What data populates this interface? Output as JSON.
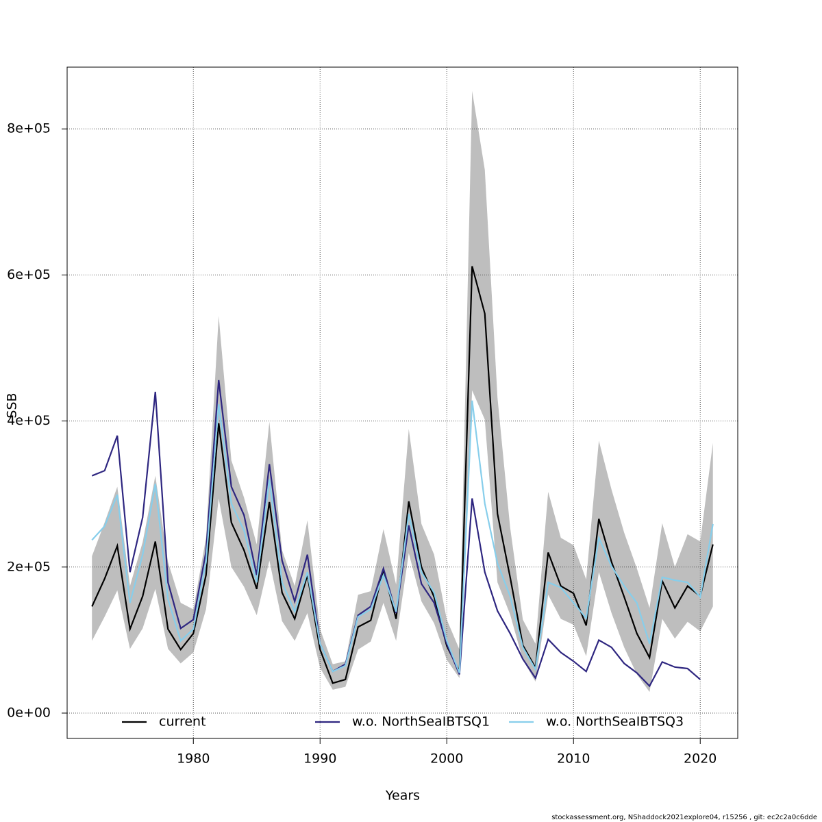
{
  "chart_data": {
    "type": "line",
    "xlabel": "Years",
    "ylabel": "SSB",
    "footer": "stockassessment.org, NShaddock2021explore04, r15256 , git: ec2c2a0c6dde",
    "x": [
      1972,
      1973,
      1974,
      1975,
      1976,
      1977,
      1978,
      1979,
      1980,
      1981,
      1982,
      1983,
      1984,
      1985,
      1986,
      1987,
      1988,
      1989,
      1990,
      1991,
      1992,
      1993,
      1994,
      1995,
      1996,
      1997,
      1998,
      1999,
      2000,
      2001,
      2002,
      2003,
      2004,
      2005,
      2006,
      2007,
      2008,
      2009,
      2010,
      2011,
      2012,
      2013,
      2014,
      2015,
      2016,
      2017,
      2018,
      2019,
      2020,
      2021
    ],
    "band": {
      "color": "#bebebe",
      "upper": [
        215000,
        261000,
        310000,
        174000,
        234000,
        325000,
        207000,
        151000,
        142000,
        240000,
        544000,
        346000,
        295000,
        231000,
        399000,
        223000,
        174000,
        264000,
        115000,
        67000,
        71000,
        162000,
        167000,
        252000,
        176000,
        389000,
        259000,
        217000,
        128000,
        87000,
        852000,
        744000,
        432000,
        254000,
        128000,
        95000,
        303000,
        240000,
        230000,
        183000,
        373000,
        306000,
        247000,
        198000,
        144000,
        260000,
        200000,
        245000,
        235000,
        370000
      ],
      "lower": [
        99000,
        132000,
        168000,
        88000,
        116000,
        170000,
        88000,
        68000,
        83000,
        142000,
        294000,
        200000,
        173000,
        134000,
        209000,
        126000,
        99000,
        137000,
        62000,
        32000,
        36000,
        87000,
        98000,
        151000,
        99000,
        219000,
        153000,
        123000,
        73000,
        48000,
        442000,
        402000,
        179000,
        135000,
        73000,
        43000,
        162000,
        129000,
        121000,
        78000,
        193000,
        137000,
        90000,
        53000,
        29000,
        129000,
        102000,
        125000,
        112000,
        146000
      ]
    },
    "series": [
      {
        "name": "current",
        "color": "#000000",
        "values": [
          146000,
          184000,
          229000,
          115000,
          160000,
          235000,
          115000,
          87000,
          109000,
          189000,
          397000,
          261000,
          223000,
          170000,
          289000,
          165000,
          129000,
          189000,
          87000,
          41000,
          46000,
          118000,
          127000,
          196000,
          129000,
          290000,
          200000,
          159000,
          92000,
          57000,
          612000,
          547000,
          273000,
          186000,
          93000,
          62000,
          220000,
          174000,
          164000,
          120000,
          266000,
          207000,
          159000,
          109000,
          76000,
          181000,
          144000,
          174000,
          160000,
          231000
        ]
      },
      {
        "name": "w.o. NorthSeaIBTSQ1",
        "color": "#2e2680",
        "values": [
          325000,
          332000,
          380000,
          193000,
          268000,
          440000,
          179000,
          116000,
          128000,
          221000,
          456000,
          310000,
          271000,
          189000,
          341000,
          209000,
          153000,
          217000,
          95000,
          57000,
          67000,
          134000,
          146000,
          198000,
          137000,
          257000,
          177000,
          151000,
          95000,
          53000,
          294000,
          193000,
          140000,
          109000,
          74000,
          48000,
          101000,
          83000,
          71000,
          57000,
          100000,
          90000,
          68000,
          55000,
          37000,
          70000,
          63000,
          61000,
          46000,
          null
        ]
      },
      {
        "name": "w.o. NorthSeaIBTSQ3",
        "color": "#87ceeb",
        "values": [
          237000,
          256000,
          299000,
          151000,
          217000,
          314000,
          156000,
          99000,
          115000,
          207000,
          423000,
          287000,
          250000,
          179000,
          320000,
          179000,
          139000,
          193000,
          95000,
          57000,
          65000,
          132000,
          142000,
          189000,
          139000,
          273000,
          193000,
          165000,
          99000,
          55000,
          428000,
          287000,
          205000,
          160000,
          90000,
          60000,
          179000,
          172000,
          151000,
          130000,
          240000,
          201000,
          174000,
          151000,
          95000,
          186000,
          182000,
          179000,
          159000,
          259000
        ]
      }
    ],
    "xlim": [
      1970.04,
      2022.96
    ],
    "xticks": [
      1980,
      1990,
      2000,
      2010,
      2020
    ],
    "ylim": [
      -34700,
      884600
    ],
    "yticks": [
      {
        "value": 0,
        "label": "0e+00"
      },
      {
        "value": 200000,
        "label": "2e+05"
      },
      {
        "value": 400000,
        "label": "4e+05"
      },
      {
        "value": 600000,
        "label": "6e+05"
      },
      {
        "value": 800000,
        "label": "8e+05"
      }
    ],
    "grid": true,
    "legend": "bottom"
  }
}
